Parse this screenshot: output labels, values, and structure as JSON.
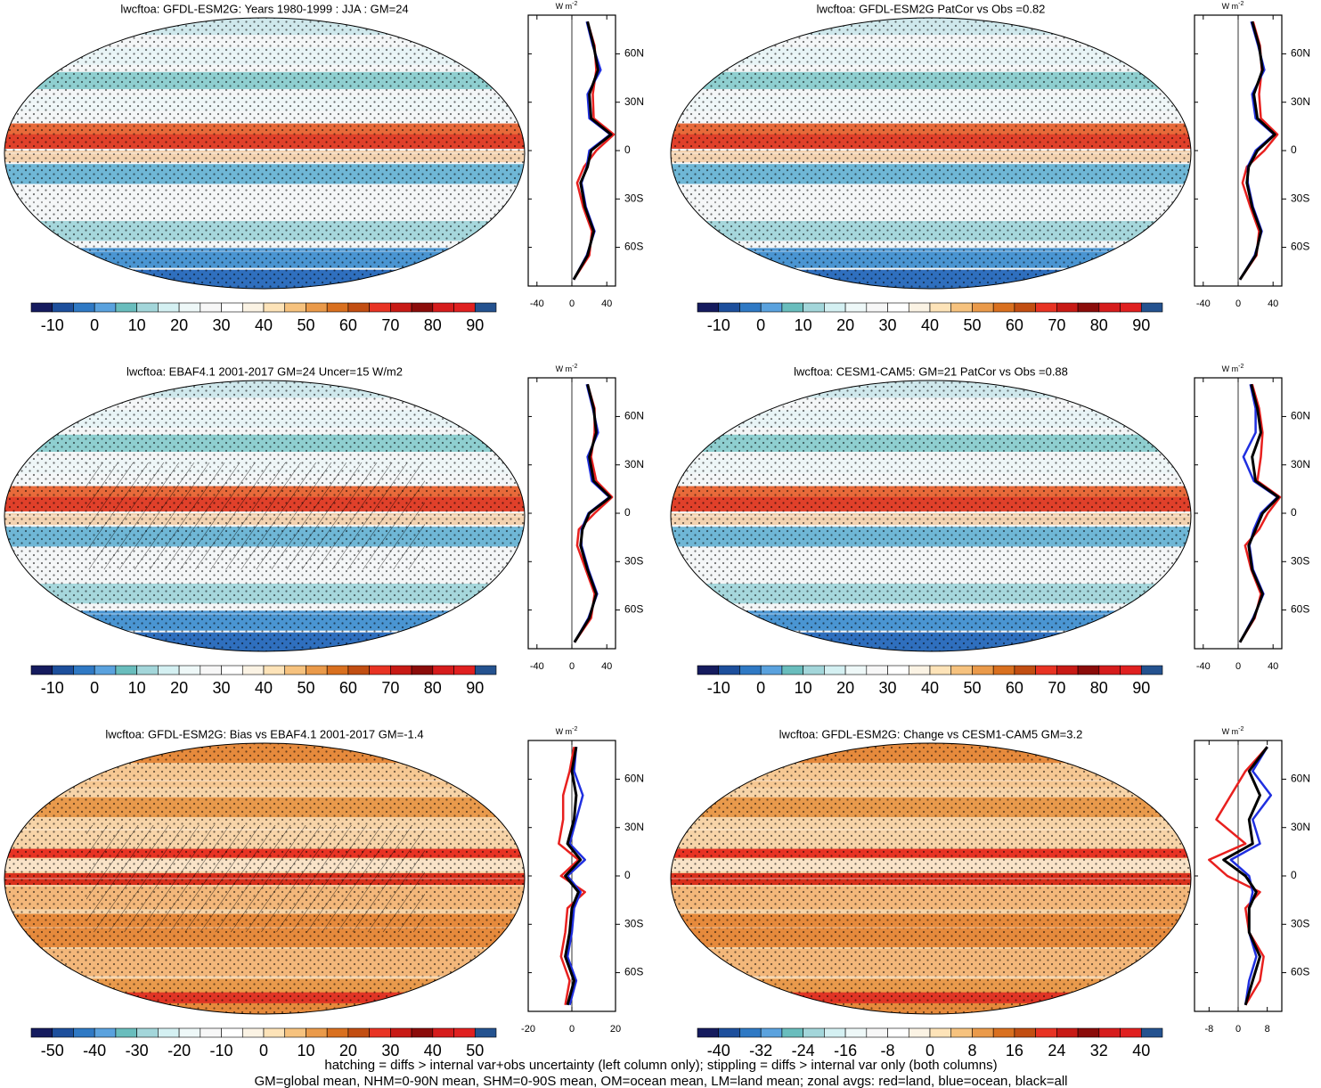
{
  "palette": [
    "#151b5e",
    "#1d4f9c",
    "#2f79c4",
    "#5aa2de",
    "#69bdbd",
    "#a3d6da",
    "#d4f0f2",
    "#eef8f8",
    "#f7f7f7",
    "#ffffff",
    "#fbf3e4",
    "#fde3b8",
    "#f6c27e",
    "#ea9a4a",
    "#d9701f",
    "#c24e12",
    "#e83323",
    "#c81a15",
    "#8b0c0a",
    "#d61c1c",
    "#e02020",
    "#24528f"
  ],
  "chart_data": [
    {
      "type": "map",
      "title": "lwcftoa: GFDL-ESM2G: Years 1980-1999 : JJA : GM=24",
      "colorbar": {
        "lim": [
          -15,
          95
        ],
        "ticks": [
          -10,
          0,
          10,
          20,
          30,
          40,
          50,
          60,
          70,
          80,
          90
        ]
      },
      "zonal": {
        "type": "line",
        "unit": "W m",
        "unit_exp": "-2",
        "xlim": [
          -50,
          50
        ],
        "xticks": [
          -40,
          0,
          40
        ],
        "ylim": [
          -84,
          84
        ],
        "yticks": [
          {
            "value": 60,
            "label": "60N"
          },
          {
            "value": 30,
            "label": "30N"
          },
          0,
          {
            "value": -30,
            "label": "30S"
          },
          {
            "value": -60,
            "label": "60S"
          }
        ],
        "lat": [
          -80,
          -65,
          -50,
          -35,
          -20,
          -10,
          0,
          10,
          20,
          35,
          50,
          65,
          80
        ],
        "series": [
          {
            "color": "#e8201e",
            "values": [
              2,
              20,
              23,
              13,
              6,
              14,
              28,
              48,
              25,
              24,
              28,
              26,
              18
            ]
          },
          {
            "color": "#1f2fe0",
            "values": [
              2,
              17,
              26,
              16,
              11,
              17,
              20,
              44,
              20,
              18,
              33,
              24,
              17
            ]
          },
          {
            "color": "#000000",
            "values": [
              2,
              18,
              25,
              15,
              10,
              18,
              22,
              45,
              22,
              20,
              30,
              25,
              18
            ]
          }
        ]
      }
    },
    {
      "type": "map",
      "title": "lwcftoa: GFDL-ESM2G PatCor vs Obs =0.82",
      "colorbar": {
        "lim": [
          -15,
          95
        ],
        "ticks": [
          -10,
          0,
          10,
          20,
          30,
          40,
          50,
          60,
          70,
          80,
          90
        ]
      },
      "zonal": {
        "type": "line",
        "unit": "W m",
        "unit_exp": "-2",
        "xlim": [
          -50,
          50
        ],
        "xticks": [
          -40,
          0,
          40
        ],
        "ylim": [
          -84,
          84
        ],
        "yticks": [
          {
            "value": 60,
            "label": "60N"
          },
          {
            "value": 30,
            "label": "30N"
          },
          0,
          {
            "value": -30,
            "label": "30S"
          },
          {
            "value": -60,
            "label": "60S"
          }
        ],
        "lat": [
          -80,
          -65,
          -50,
          -35,
          -20,
          -10,
          0,
          10,
          20,
          35,
          50,
          65,
          80
        ],
        "series": [
          {
            "color": "#e8201e",
            "values": [
              2,
              21,
              24,
              14,
              5,
              10,
              30,
              45,
              26,
              24,
              27,
              25,
              17
            ]
          },
          {
            "color": "#1f2fe0",
            "values": [
              2,
              19,
              27,
              17,
              11,
              11,
              20,
              41,
              20,
              16,
              30,
              23,
              15
            ]
          },
          {
            "color": "#000000",
            "values": [
              2,
              20,
              26,
              16,
              10,
              12,
              22,
              42,
              22,
              18,
              28,
              24,
              16
            ]
          }
        ]
      }
    },
    {
      "type": "map",
      "title": "lwcftoa: EBAF4.1 2001-2017 GM=24 Uncer=15 W/m2",
      "colorbar": {
        "lim": [
          -15,
          95
        ],
        "ticks": [
          -10,
          0,
          10,
          20,
          30,
          40,
          50,
          60,
          70,
          80,
          90
        ]
      },
      "zonal": {
        "type": "line",
        "unit": "W m",
        "unit_exp": "-2",
        "xlim": [
          -50,
          50
        ],
        "xticks": [
          -40,
          0,
          40
        ],
        "ylim": [
          -84,
          84
        ],
        "yticks": [
          {
            "value": 60,
            "label": "60N"
          },
          {
            "value": 30,
            "label": "30N"
          },
          0,
          {
            "value": -30,
            "label": "30S"
          },
          {
            "value": -60,
            "label": "60S"
          }
        ],
        "lat": [
          -80,
          -65,
          -50,
          -35,
          -20,
          -10,
          0,
          10,
          20,
          35,
          50,
          65,
          80
        ],
        "series": [
          {
            "color": "#e8201e",
            "values": [
              3,
              22,
              26,
              16,
              6,
              8,
              26,
              46,
              28,
              22,
              26,
              26,
              18
            ]
          },
          {
            "color": "#1f2fe0",
            "values": [
              3,
              19,
              29,
              19,
              11,
              11,
              19,
              43,
              23,
              18,
              30,
              24,
              17
            ]
          },
          {
            "color": "#000000",
            "values": [
              3,
              20,
              28,
              18,
              10,
              12,
              20,
              44,
              25,
              20,
              28,
              25,
              18
            ]
          }
        ]
      }
    },
    {
      "type": "map",
      "title": "lwcftoa: CESM1-CAM5: GM=21 PatCor vs Obs =0.88",
      "colorbar": {
        "lim": [
          -15,
          95
        ],
        "ticks": [
          -10,
          0,
          10,
          20,
          30,
          40,
          50,
          60,
          70,
          80,
          90
        ]
      },
      "zonal": {
        "type": "line",
        "unit": "W m",
        "unit_exp": "-2",
        "xlim": [
          -50,
          50
        ],
        "xticks": [
          -40,
          0,
          40
        ],
        "ylim": [
          -84,
          84
        ],
        "yticks": [
          {
            "value": 60,
            "label": "60N"
          },
          {
            "value": 30,
            "label": "30N"
          },
          0,
          {
            "value": -30,
            "label": "30S"
          },
          {
            "value": -60,
            "label": "60S"
          }
        ],
        "lat": [
          -80,
          -65,
          -50,
          -35,
          -20,
          -10,
          0,
          10,
          20,
          35,
          50,
          65,
          80
        ],
        "series": [
          {
            "color": "#e8201e",
            "values": [
              2,
              19,
              26,
              15,
              8,
              24,
              34,
              48,
              22,
              26,
              28,
              24,
              16
            ]
          },
          {
            "color": "#1f2fe0",
            "values": [
              2,
              17,
              29,
              17,
              13,
              18,
              26,
              45,
              18,
              6,
              20,
              20,
              14
            ]
          },
          {
            "color": "#000000",
            "values": [
              2,
              18,
              28,
              16,
              12,
              20,
              28,
              46,
              20,
              16,
              26,
              22,
              15
            ]
          }
        ]
      }
    },
    {
      "type": "map",
      "title": "lwcftoa: GFDL-ESM2G: Bias vs EBAF4.1 2001-2017 GM=-1.4",
      "colorbar": {
        "lim": [
          -55,
          55
        ],
        "ticks": [
          -50,
          -40,
          -30,
          -20,
          -10,
          0,
          10,
          20,
          30,
          40,
          50
        ]
      },
      "zonal": {
        "type": "line",
        "unit": "W m",
        "unit_exp": "-2",
        "xlim": [
          -20,
          20
        ],
        "xticks": [
          -20,
          0,
          20
        ],
        "ylim": [
          -84,
          84
        ],
        "yticks": [
          {
            "value": 60,
            "label": "60N"
          },
          {
            "value": 30,
            "label": "30N"
          },
          0,
          {
            "value": -30,
            "label": "30S"
          },
          {
            "value": -60,
            "label": "60S"
          }
        ],
        "lat": [
          -80,
          -65,
          -50,
          -35,
          -20,
          -10,
          0,
          10,
          20,
          35,
          50,
          65,
          80
        ],
        "series": [
          {
            "color": "#e8201e",
            "values": [
              -3,
              -1,
              -5,
              -3,
              -2,
              6,
              -5,
              3,
              -6,
              -4,
              -4,
              -1,
              1
            ]
          },
          {
            "color": "#1f2fe0",
            "values": [
              -1,
              2,
              -2,
              0,
              1,
              4,
              -2,
              6,
              -1,
              2,
              5,
              1,
              2
            ]
          },
          {
            "color": "#000000",
            "values": [
              -2,
              1,
              -3,
              -1,
              0,
              3,
              -3,
              4,
              -2,
              1,
              2,
              0,
              2
            ]
          }
        ]
      }
    },
    {
      "type": "map",
      "title": "lwcftoa: GFDL-ESM2G: Change vs CESM1-CAM5 GM=3.2",
      "colorbar": {
        "lim": [
          -44,
          44
        ],
        "ticks": [
          -40,
          -32,
          -24,
          -16,
          -8,
          0,
          8,
          16,
          24,
          32,
          40
        ]
      },
      "zonal": {
        "type": "line",
        "unit": "W m",
        "unit_exp": "-2",
        "xlim": [
          -12,
          12
        ],
        "xticks": [
          -8,
          0,
          8
        ],
        "ylim": [
          -84,
          84
        ],
        "yticks": [
          {
            "value": 60,
            "label": "60N"
          },
          {
            "value": 30,
            "label": "30N"
          },
          0,
          {
            "value": -30,
            "label": "30S"
          },
          {
            "value": -60,
            "label": "60S"
          }
        ],
        "lat": [
          -80,
          -65,
          -50,
          -35,
          -20,
          -10,
          0,
          10,
          20,
          35,
          50,
          65,
          80
        ],
        "series": [
          {
            "color": "#e8201e",
            "values": [
              2,
              6,
              7,
              3,
              2,
              6,
              -3,
              -8,
              2,
              -6,
              -2,
              2,
              8
            ]
          },
          {
            "color": "#1f2fe0",
            "values": [
              2,
              3,
              5,
              3,
              3,
              4,
              3,
              -2,
              6,
              4,
              9,
              4,
              8
            ]
          },
          {
            "color": "#000000",
            "values": [
              2,
              4,
              6,
              3,
              3,
              5,
              2,
              -4,
              4,
              3,
              6,
              3,
              8
            ]
          }
        ]
      }
    }
  ],
  "notes": [
    "hatching = diffs > internal var+obs uncertainty (left column only); stippling = diffs > internal var only (both columns)",
    "GM=global mean, NHM=0-90N mean, SHM=0-90S mean, OM=ocean mean, LM=land mean; zonal avgs: red=land, blue=ocean, black=all"
  ]
}
